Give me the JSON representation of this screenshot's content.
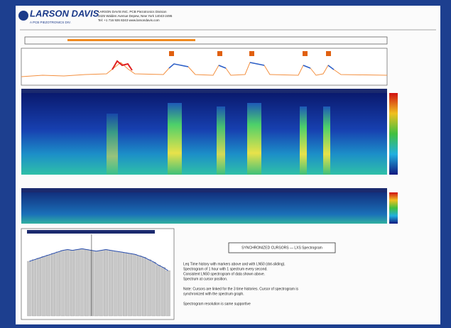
{
  "header": {
    "logo": "LARSON DAVIS",
    "logo_sub": "A PCB PIEZOTRONICS DIV.",
    "company_lines": [
      "LARSON DAVIS INC. PCB Piezotronics Division",
      "3425 Walden Avenue Depew, New York 14043-2495",
      "Tel: +1 716 926 8243 www.larsondavis.com"
    ]
  },
  "caption_box": "SYNCHRONIZED CURSORS — LXS Spectrogram",
  "notes": [
    "Leq Time history with markers above and with LN50 (dot-sliding).",
    "Spectrogram of 1 hour with 1 spectrum every second.",
    "Consistent LN50 spectrogram of data shown above.",
    "Spectrum at cursor position.",
    "Note: Cursors are linked for the 3 time histories. Cursor of spectrogram is",
    "synchronized with the spectrum graph.",
    "Spectrogram resolution is same supportive"
  ],
  "spectrum": {
    "values": [
      70,
      72,
      74,
      76,
      78,
      80,
      82,
      84,
      85,
      84,
      85,
      86,
      85,
      84,
      83,
      84,
      85,
      84,
      83,
      82,
      81,
      80,
      79,
      77,
      75,
      72,
      69,
      65,
      62,
      58
    ],
    "ylim": [
      0,
      100
    ],
    "color": "#c8c8c8"
  }
}
